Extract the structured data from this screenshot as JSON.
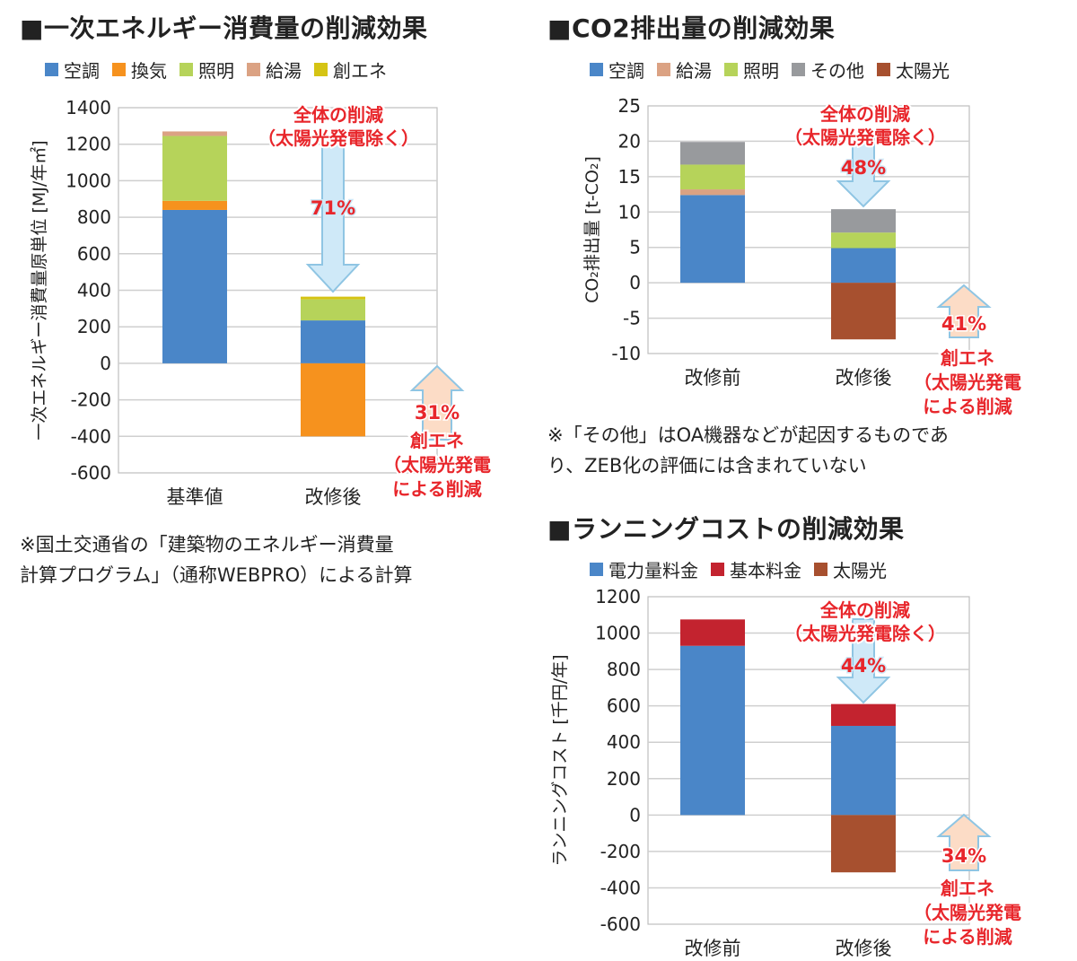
{
  "colors": {
    "kucho": "#4a86c8",
    "kanki": "#f6921e",
    "shomei": "#b6d35a",
    "kyuto": "#dba283",
    "souene": "#d5c414",
    "sonota": "#989a9d",
    "taiyoko": "#a7502f",
    "kihon": "#c3232f",
    "denryoku": "#4a86c8",
    "annotation_red": "#e8262b",
    "arrow_fill": "#cfe9f8",
    "arrow_stroke": "#8fc5e3",
    "arrow_up_fill": "#fcdcc6"
  },
  "charts": {
    "energy": {
      "title": "■一次エネルギー消費量の削減効果",
      "legend": [
        {
          "label": "空調",
          "color_key": "kucho"
        },
        {
          "label": "換気",
          "color_key": "kanki"
        },
        {
          "label": "照明",
          "color_key": "shomei"
        },
        {
          "label": "給湯",
          "color_key": "kyuto"
        },
        {
          "label": "創エネ",
          "color_key": "souene"
        }
      ],
      "note_lines": [
        "※国土交通省の「建築物のエネルギー消費量",
        "計算プログラム」（通称WEBPRO）による計算"
      ],
      "annotation_down": {
        "lines": [
          "全体の削減",
          "（太陽光発電除く）"
        ],
        "pct": "71%"
      },
      "annotation_up": {
        "pct": "31%",
        "lines": [
          "創エネ",
          "（太陽光発電",
          "による削減"
        ]
      }
    },
    "co2": {
      "title": "■CO2排出量の削減効果",
      "legend": [
        {
          "label": "空調",
          "color_key": "kucho"
        },
        {
          "label": "給湯",
          "color_key": "kyuto"
        },
        {
          "label": "照明",
          "color_key": "shomei"
        },
        {
          "label": "その他",
          "color_key": "sonota"
        },
        {
          "label": "太陽光",
          "color_key": "taiyoko"
        }
      ],
      "note_lines": [
        "※「その他」はOA機器などが起因するものであ",
        "り、ZEB化の評価には含まれていない"
      ],
      "annotation_down": {
        "lines": [
          "全体の削減",
          "（太陽光発電除く）"
        ],
        "pct": "48%"
      },
      "annotation_up": {
        "pct": "41%",
        "lines": [
          "創エネ",
          "（太陽光発電",
          "による削減"
        ]
      }
    },
    "cost": {
      "title": "■ランニングコストの削減効果",
      "legend": [
        {
          "label": "電力量料金",
          "color_key": "denryoku"
        },
        {
          "label": "基本料金",
          "color_key": "kihon"
        },
        {
          "label": "太陽光",
          "color_key": "taiyoko"
        }
      ],
      "annotation_down": {
        "lines": [
          "全体の削減",
          "（太陽光発電除く）"
        ],
        "pct": "44%"
      },
      "annotation_up": {
        "pct": "34%",
        "lines": [
          "創エネ",
          "（太陽光発電",
          "による削減"
        ]
      }
    }
  },
  "chart_data": [
    {
      "type": "bar",
      "stacked": true,
      "title": "一次エネルギー消費量の削減効果",
      "ylabel": "一次エネルギー消費量原単位 [MJ/年㎡]",
      "categories": [
        "基準値",
        "改修後"
      ],
      "ylim": [
        -600,
        1400
      ],
      "yticks": [
        -600,
        -400,
        -200,
        0,
        200,
        400,
        600,
        800,
        1000,
        1200,
        1400
      ],
      "grid": true,
      "legend_position": "top",
      "series": [
        {
          "name": "空調",
          "color_key": "kucho",
          "values": [
            840,
            235
          ]
        },
        {
          "name": "換気",
          "color_key": "kanki",
          "values": [
            50,
            -400
          ]
        },
        {
          "name": "照明",
          "color_key": "shomei",
          "values": [
            355,
            115
          ]
        },
        {
          "name": "給湯",
          "color_key": "kyuto",
          "values": [
            25,
            0
          ]
        },
        {
          "name": "創エネ",
          "color_key": "souene",
          "values": [
            0,
            15
          ]
        }
      ]
    },
    {
      "type": "bar",
      "stacked": true,
      "title": "CO2排出量の削減効果",
      "ylabel": "CO₂排出量 [t-CO₂]",
      "categories": [
        "改修前",
        "改修後"
      ],
      "ylim": [
        -10,
        25
      ],
      "yticks": [
        -10,
        -5,
        0,
        5,
        10,
        15,
        20,
        25
      ],
      "grid": true,
      "legend_position": "top",
      "series": [
        {
          "name": "空調",
          "color_key": "kucho",
          "values": [
            12.4,
            4.9
          ]
        },
        {
          "name": "給湯",
          "color_key": "kyuto",
          "values": [
            0.8,
            0
          ]
        },
        {
          "name": "照明",
          "color_key": "shomei",
          "values": [
            3.5,
            2.2
          ]
        },
        {
          "name": "その他",
          "color_key": "sonota",
          "values": [
            3.2,
            3.3
          ]
        },
        {
          "name": "太陽光",
          "color_key": "taiyoko",
          "values": [
            0,
            -8
          ]
        }
      ]
    },
    {
      "type": "bar",
      "stacked": true,
      "title": "ランニングコストの削減効果",
      "ylabel": "ランニングコスト [千円/年]",
      "categories": [
        "改修前",
        "改修後"
      ],
      "ylim": [
        -600,
        1200
      ],
      "yticks": [
        -600,
        -400,
        -200,
        0,
        200,
        400,
        600,
        800,
        1000,
        1200
      ],
      "grid": true,
      "legend_position": "top",
      "series": [
        {
          "name": "電力量料金",
          "color_key": "denryoku",
          "values": [
            930,
            490
          ]
        },
        {
          "name": "基本料金",
          "color_key": "kihon",
          "values": [
            145,
            120
          ]
        },
        {
          "name": "太陽光",
          "color_key": "taiyoko",
          "values": [
            0,
            -315
          ]
        }
      ]
    }
  ]
}
